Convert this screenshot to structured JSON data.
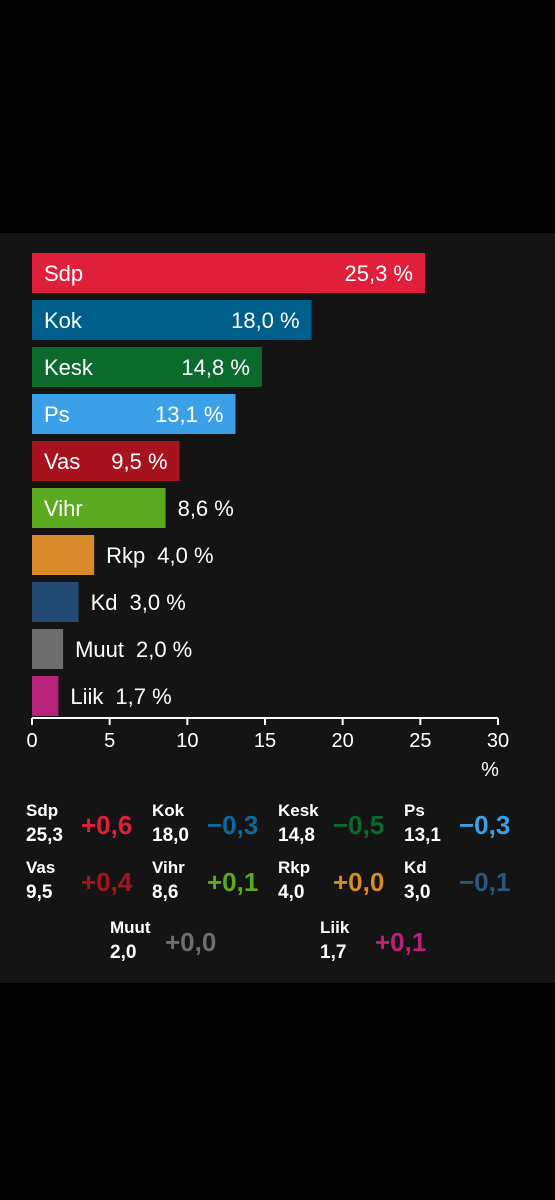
{
  "chart_data": {
    "type": "bar",
    "orientation": "horizontal",
    "categories": [
      "Sdp",
      "Kok",
      "Kesk",
      "Ps",
      "Vas",
      "Vihr",
      "Rkp",
      "Kd",
      "Muut",
      "Liik"
    ],
    "values": [
      25.3,
      18.0,
      14.8,
      13.1,
      9.5,
      8.6,
      4.0,
      3.0,
      2.0,
      1.7
    ],
    "value_labels": [
      "25,3 %",
      "18,0 %",
      "14,8 %",
      "13,1 %",
      "9,5 %",
      "8,6 %",
      "4,0 %",
      "3,0 %",
      "2,0 %",
      "1,7 %"
    ],
    "colors": [
      "#e0203b",
      "#005f8a",
      "#0a6b2d",
      "#3ca0e8",
      "#a8141e",
      "#5aa91f",
      "#d88a2a",
      "#224a72",
      "#6e6e6e",
      "#b8237a"
    ],
    "xlim": [
      0,
      30
    ],
    "xticks": [
      0,
      5,
      10,
      15,
      20,
      25,
      30
    ],
    "xtick_labels": [
      "0",
      "5",
      "10",
      "15",
      "20",
      "25",
      "30"
    ],
    "xlabel": "%"
  },
  "summary": {
    "rows": [
      [
        {
          "name": "Sdp",
          "value": "25,3",
          "change": "+0,6",
          "color": "#e0203b"
        },
        {
          "name": "Kok",
          "value": "18,0",
          "change": "−0,3",
          "color": "#0b6a99"
        },
        {
          "name": "Kesk",
          "value": "14,8",
          "change": "−0,5",
          "color": "#0a6b2d"
        },
        {
          "name": "Ps",
          "value": "13,1",
          "change": "−0,3",
          "color": "#3ca0e8"
        }
      ],
      [
        {
          "name": "Vas",
          "value": "9,5",
          "change": "+0,4",
          "color": "#a8141e"
        },
        {
          "name": "Vihr",
          "value": "8,6",
          "change": "+0,1",
          "color": "#5aa91f"
        },
        {
          "name": "Rkp",
          "value": "4,0",
          "change": "+0,0",
          "color": "#d88a2a"
        },
        {
          "name": "Kd",
          "value": "3,0",
          "change": "−0,1",
          "color": "#2a5680"
        }
      ],
      [
        {
          "name": "Muut",
          "value": "2,0",
          "change": "+0,0",
          "color": "#6e6e6e"
        },
        {
          "name": "Liik",
          "value": "1,7",
          "change": "+0,1",
          "color": "#b8237a"
        }
      ]
    ]
  }
}
